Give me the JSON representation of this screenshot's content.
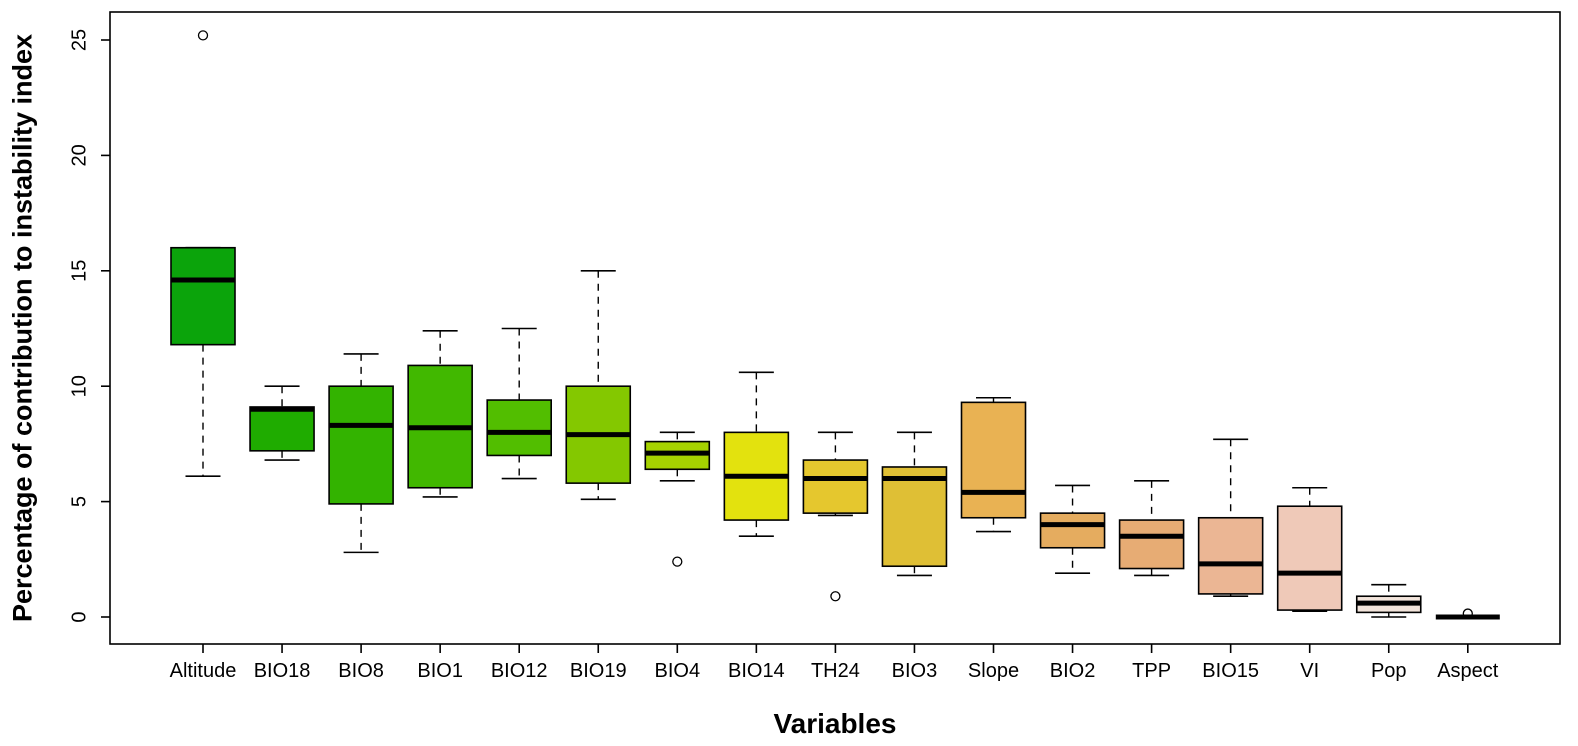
{
  "page": {
    "background": "#FFFFFF"
  },
  "chart_data": {
    "type": "boxplot",
    "title": "",
    "xlabel": "Variables",
    "ylabel": "Percentage of contribution to instability index",
    "ylim": [
      0,
      25
    ],
    "yticks": [
      0,
      5,
      10,
      15,
      20,
      25
    ],
    "grid": false,
    "legend": "none",
    "axis_color": "#000000",
    "median_color": "#000000",
    "whisker_style": "dashed",
    "categories": [
      "Altitude",
      "BIO18",
      "BIO8",
      "BIO1",
      "BIO12",
      "BIO19",
      "BIO4",
      "BIO14",
      "TH24",
      "BIO3",
      "Slope",
      "BIO2",
      "TPP",
      "BIO15",
      "VI",
      "Pop",
      "Aspect"
    ],
    "series": [
      {
        "name": "Altitude",
        "color": "#0BA40B",
        "whisker_low": 6.1,
        "q1": 11.8,
        "median": 14.6,
        "q3": 16.0,
        "whisker_high": 16.0,
        "outliers": [
          25.2
        ]
      },
      {
        "name": "BIO18",
        "color": "#1FAC00",
        "whisker_low": 6.8,
        "q1": 7.2,
        "median": 9.0,
        "q3": 9.1,
        "whisker_high": 10.0,
        "outliers": []
      },
      {
        "name": "BIO8",
        "color": "#33B300",
        "whisker_low": 2.8,
        "q1": 4.9,
        "median": 8.3,
        "q3": 10.0,
        "whisker_high": 11.4,
        "outliers": []
      },
      {
        "name": "BIO1",
        "color": "#41B800",
        "whisker_low": 5.2,
        "q1": 5.6,
        "median": 8.2,
        "q3": 10.9,
        "whisker_high": 12.4,
        "outliers": []
      },
      {
        "name": "BIO12",
        "color": "#52BE00",
        "whisker_low": 6.0,
        "q1": 7.0,
        "median": 8.0,
        "q3": 9.4,
        "whisker_high": 12.5,
        "outliers": []
      },
      {
        "name": "BIO19",
        "color": "#84C800",
        "whisker_low": 5.1,
        "q1": 5.8,
        "median": 7.9,
        "q3": 10.0,
        "whisker_high": 15.0,
        "outliers": []
      },
      {
        "name": "BIO4",
        "color": "#A6D200",
        "whisker_low": 5.9,
        "q1": 6.4,
        "median": 7.1,
        "q3": 7.6,
        "whisker_high": 8.0,
        "outliers": [
          2.4
        ]
      },
      {
        "name": "BIO14",
        "color": "#E3E20E",
        "whisker_low": 3.5,
        "q1": 4.2,
        "median": 6.1,
        "q3": 8.0,
        "whisker_high": 10.6,
        "outliers": []
      },
      {
        "name": "TH24",
        "color": "#E5C72E",
        "whisker_low": 4.4,
        "q1": 4.5,
        "median": 6.0,
        "q3": 6.8,
        "whisker_high": 8.0,
        "outliers": [
          0.9
        ]
      },
      {
        "name": "BIO3",
        "color": "#DFBF35",
        "whisker_low": 1.8,
        "q1": 2.2,
        "median": 6.0,
        "q3": 6.5,
        "whisker_high": 8.0,
        "outliers": []
      },
      {
        "name": "Slope",
        "color": "#E9B253",
        "whisker_low": 3.7,
        "q1": 4.3,
        "median": 5.4,
        "q3": 9.3,
        "whisker_high": 9.5,
        "outliers": []
      },
      {
        "name": "BIO2",
        "color": "#E5AC5F",
        "whisker_low": 1.9,
        "q1": 3.0,
        "median": 4.0,
        "q3": 4.5,
        "whisker_high": 5.7,
        "outliers": []
      },
      {
        "name": "TPP",
        "color": "#E7AC74",
        "whisker_low": 1.8,
        "q1": 2.1,
        "median": 3.5,
        "q3": 4.2,
        "whisker_high": 5.9,
        "outliers": []
      },
      {
        "name": "BIO15",
        "color": "#EBB694",
        "whisker_low": 0.9,
        "q1": 1.0,
        "median": 2.3,
        "q3": 4.3,
        "whisker_high": 7.7,
        "outliers": []
      },
      {
        "name": "VI",
        "color": "#EFC9B8",
        "whisker_low": 0.25,
        "q1": 0.3,
        "median": 1.9,
        "q3": 4.8,
        "whisker_high": 5.6,
        "outliers": []
      },
      {
        "name": "Pop",
        "color": "#F2E4DB",
        "whisker_low": 0.0,
        "q1": 0.2,
        "median": 0.6,
        "q3": 0.9,
        "whisker_high": 1.4,
        "outliers": []
      },
      {
        "name": "Aspect",
        "color": "#F2F2F2",
        "whisker_low": 0.0,
        "q1": 0.0,
        "median": 0.0,
        "q3": 0.0,
        "whisker_high": 0.0,
        "outliers": [
          0.15
        ]
      }
    ]
  }
}
